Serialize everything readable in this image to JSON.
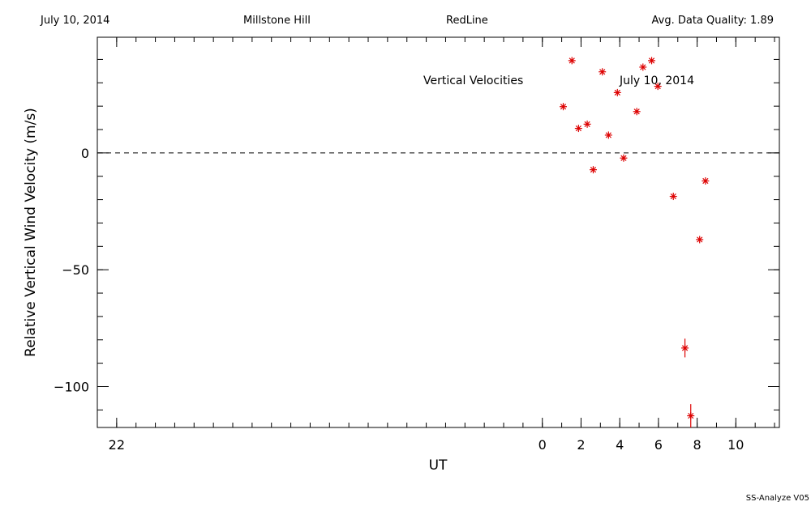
{
  "header": {
    "date": "July 10, 2014",
    "site": "Millstone Hill",
    "line": "RedLine",
    "quality": "Avg. Data Quality: 1.89"
  },
  "footer": {
    "version": "SS-Analyze V05"
  },
  "chart_data": {
    "type": "scatter",
    "title": "Vertical Velocities",
    "annotation": "July 10, 2014",
    "xlabel": "UT",
    "ylabel": "Relative Vertical Wind Velocity (m/s)",
    "xlim": [
      -23,
      12.25
    ],
    "ylim": [
      -117.5,
      49.5
    ],
    "xticks": [
      -22,
      0,
      2,
      4,
      6,
      8,
      10
    ],
    "xtick_labels": [
      "22",
      "0",
      "2",
      "4",
      "6",
      "8",
      "10"
    ],
    "yticks": [
      0,
      -50,
      -100
    ],
    "ytick_labels": [
      "0",
      "−50",
      "−100"
    ],
    "zero_line": "dashed",
    "marker_color": "#dd0000",
    "series": [
      {
        "x": [
          1.08,
          1.53,
          1.87,
          2.32,
          2.63,
          3.1,
          3.42,
          3.88,
          4.2,
          4.88,
          5.2,
          5.65,
          5.97,
          6.77,
          7.37,
          7.67,
          8.13,
          8.43
        ],
        "y": [
          19.8,
          39.5,
          10.5,
          12.3,
          -7.2,
          34.7,
          7.6,
          25.8,
          -2.2,
          17.7,
          36.7,
          39.5,
          28.5,
          -18.6,
          -83.5,
          -112.5,
          -37.1,
          -12.0
        ],
        "yerr": [
          0,
          0,
          0,
          0,
          0,
          0,
          0,
          0,
          0,
          0,
          0,
          0,
          0,
          0,
          4.0,
          5.0,
          0,
          0
        ]
      }
    ]
  }
}
